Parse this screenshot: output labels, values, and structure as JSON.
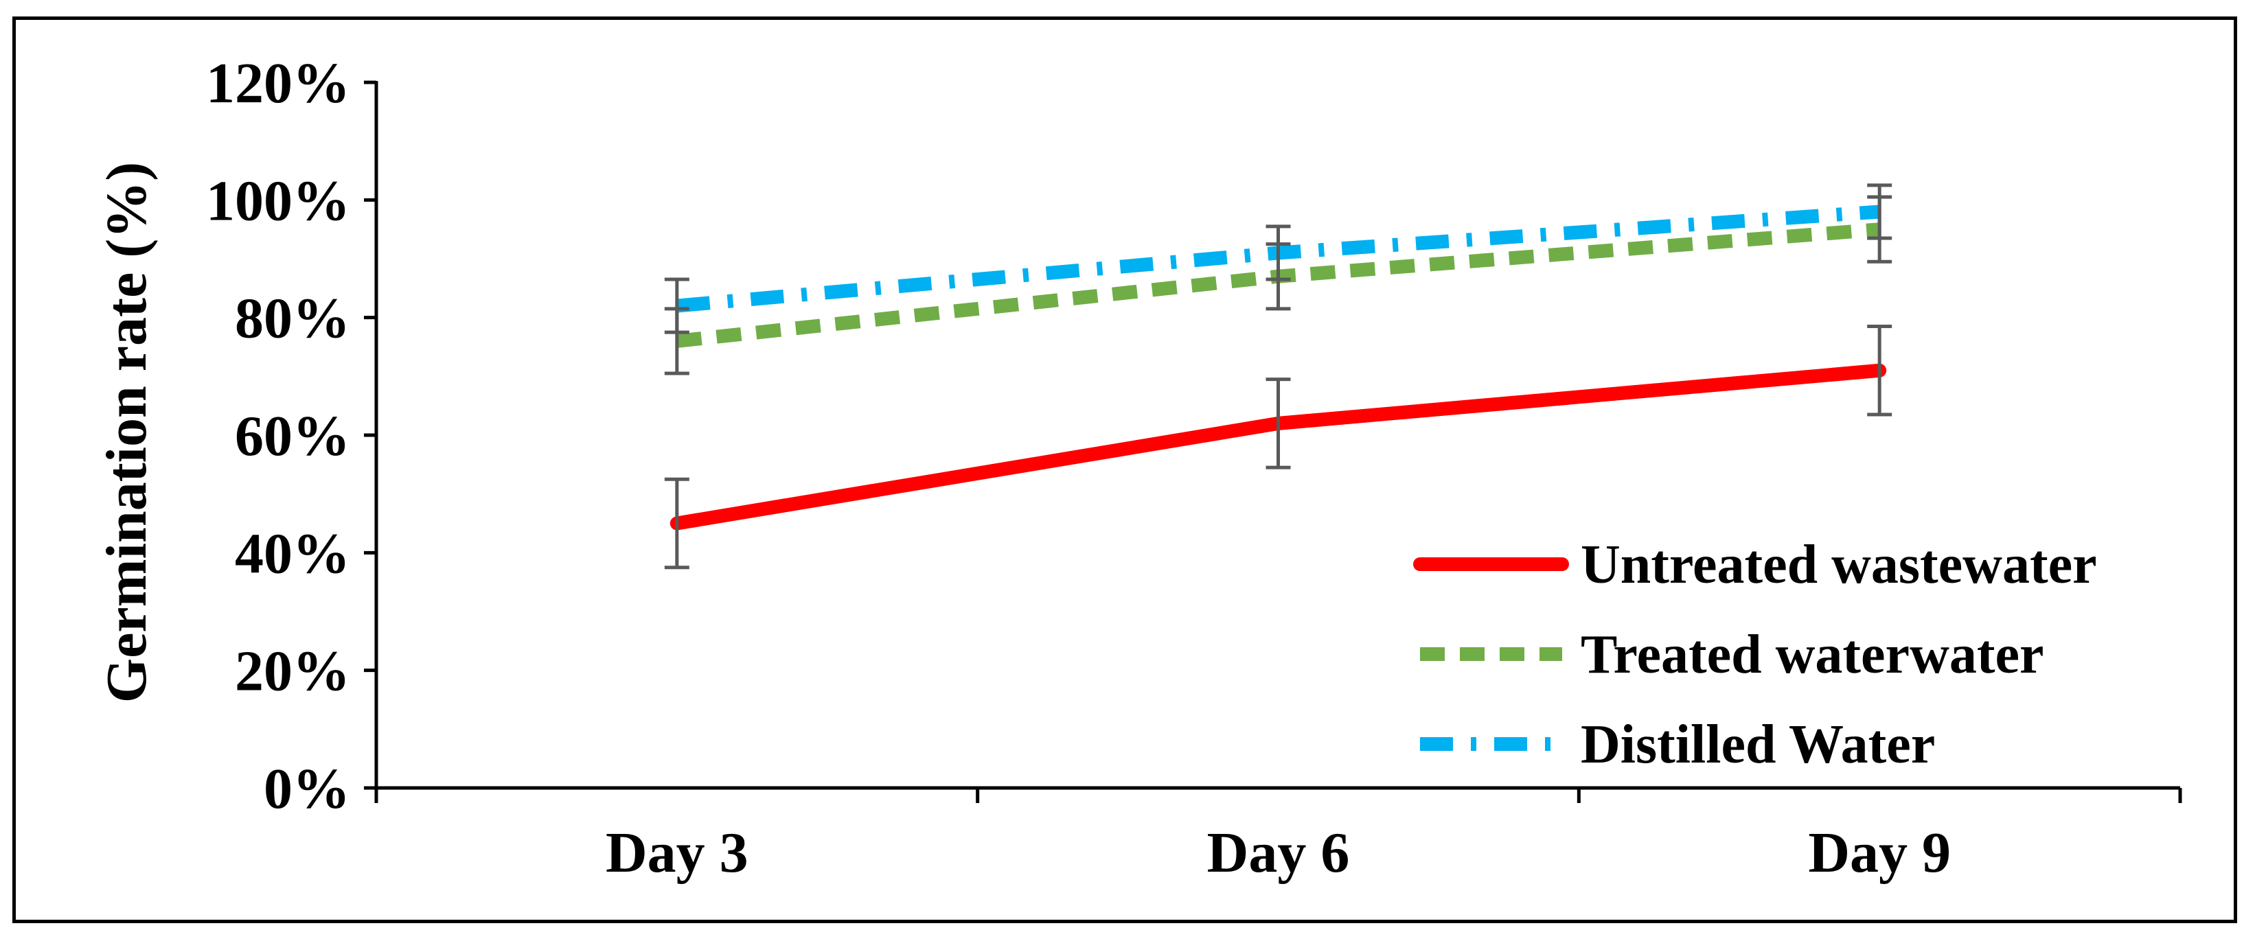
{
  "chart_data": {
    "type": "line",
    "title": "",
    "xlabel": "",
    "ylabel": "Germination rate (%)",
    "categories": [
      "Day 3",
      "Day 6",
      "Day 9"
    ],
    "ylim": [
      0,
      120
    ],
    "yticks": [
      0,
      20,
      40,
      60,
      80,
      100,
      120
    ],
    "ytick_labels": [
      "0%",
      "20%",
      "40%",
      "60%",
      "80%",
      "100%",
      "120%"
    ],
    "grid": false,
    "legend_position": "bottom-right",
    "series": [
      {
        "name": "Untreated wastewater",
        "values": [
          45,
          62,
          71
        ],
        "errors": [
          7.5,
          7.5,
          7.5
        ],
        "color": "#ff0000",
        "style": "solid"
      },
      {
        "name": "Treated waterwater",
        "values": [
          76,
          87,
          95
        ],
        "errors": [
          5.5,
          5.5,
          5.5
        ],
        "color": "#70ad47",
        "style": "dashed"
      },
      {
        "name": "Distilled Water",
        "values": [
          82,
          91,
          98
        ],
        "errors": [
          4.5,
          4.5,
          4.5
        ],
        "color": "#00b0f0",
        "style": "dash-dot"
      }
    ],
    "error_bar_color": "#595959"
  }
}
